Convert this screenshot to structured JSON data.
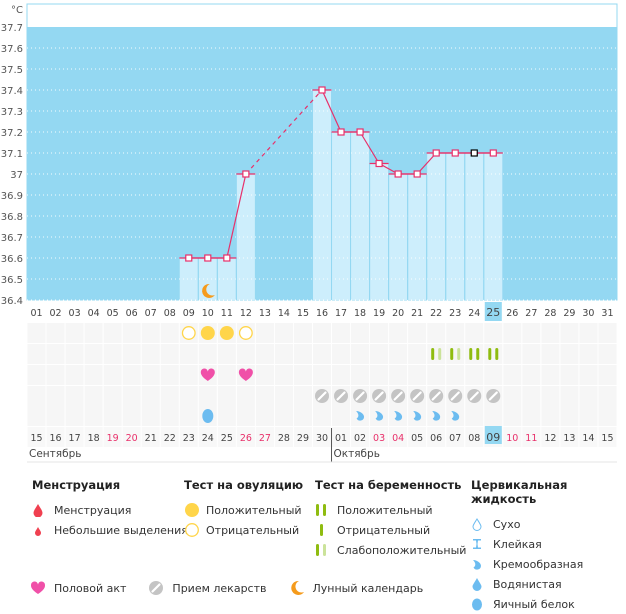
{
  "chart_data": {
    "type": "line",
    "title": "",
    "ylabel": "°C",
    "ylim": [
      36.4,
      37.7
    ],
    "yticks": [
      "37.7",
      "37.6",
      "37.5",
      "37.4",
      "37.3",
      "37.2",
      "37.1",
      "37",
      "36.9",
      "36.8",
      "36.7",
      "36.6",
      "36.5",
      "36.4"
    ],
    "cycle_days": [
      "01",
      "02",
      "03",
      "04",
      "05",
      "06",
      "07",
      "08",
      "09",
      "10",
      "11",
      "12",
      "13",
      "14",
      "15",
      "16",
      "17",
      "18",
      "19",
      "20",
      "21",
      "22",
      "23",
      "24",
      "25",
      "26",
      "27",
      "28",
      "29",
      "30",
      "31"
    ],
    "current_day": "25",
    "temperatures": [
      {
        "day": 9,
        "value": 36.6
      },
      {
        "day": 10,
        "value": 36.6
      },
      {
        "day": 11,
        "value": 36.6
      },
      {
        "day": 12,
        "value": 37.0
      },
      {
        "day": 16,
        "value": 37.4
      },
      {
        "day": 17,
        "value": 37.2
      },
      {
        "day": 18,
        "value": 37.2
      },
      {
        "day": 19,
        "value": 37.05
      },
      {
        "day": 20,
        "value": 37.0
      },
      {
        "day": 21,
        "value": 37.0
      },
      {
        "day": 22,
        "value": 37.1
      },
      {
        "day": 23,
        "value": 37.1
      },
      {
        "day": 24,
        "value": 37.1
      },
      {
        "day": 25,
        "value": 37.1
      }
    ],
    "dashed_gap": [
      12,
      16
    ],
    "lunar_calendar_days": [
      10
    ],
    "ovulation_test": [
      {
        "day": 9,
        "result": "negative"
      },
      {
        "day": 10,
        "result": "positive"
      },
      {
        "day": 11,
        "result": "positive"
      },
      {
        "day": 12,
        "result": "negative"
      }
    ],
    "pregnancy_test": [
      {
        "day": 22,
        "result": "weak"
      },
      {
        "day": 23,
        "result": "weak"
      },
      {
        "day": 24,
        "result": "positive"
      },
      {
        "day": 25,
        "result": "positive"
      }
    ],
    "intercourse_days": [
      10,
      12
    ],
    "medication_days": [
      16,
      17,
      18,
      19,
      20,
      21,
      22,
      23,
      24,
      25
    ],
    "cervical_fluid": [
      {
        "day": 10,
        "type": "egg_white"
      },
      {
        "day": 18,
        "type": "creamy"
      },
      {
        "day": 19,
        "type": "creamy"
      },
      {
        "day": 20,
        "type": "creamy"
      },
      {
        "day": 21,
        "type": "creamy"
      },
      {
        "day": 22,
        "type": "creamy"
      },
      {
        "day": 23,
        "type": "creamy"
      }
    ],
    "calendar_dates": [
      "15",
      "16",
      "17",
      "18",
      "19",
      "20",
      "21",
      "22",
      "23",
      "24",
      "25",
      "26",
      "27",
      "28",
      "29",
      "30",
      "01",
      "02",
      "03",
      "04",
      "05",
      "06",
      "07",
      "08",
      "09",
      "10",
      "11",
      "12",
      "13",
      "14",
      "15"
    ],
    "weekend_dates_index": [
      4,
      5,
      11,
      12,
      18,
      19,
      25,
      26
    ],
    "today_date_index": 24,
    "month_labels": [
      {
        "label": "Сентябрь",
        "start_index": 0
      },
      {
        "label": "Октябрь",
        "start_index": 16
      }
    ]
  },
  "colors": {
    "chart_bg": "#94d8f2",
    "bar": "#cdeefc",
    "line": "#e8306a",
    "ovulation": "#ffd54a",
    "pregnancy_dark": "#8fbc10",
    "pregnancy_light": "#cbe39a",
    "heart": "#f050a8",
    "medication": "#c4c4c4",
    "fluid": "#6cbcf0",
    "moon": "#f59b1c",
    "weekend": "#e8306a",
    "menstruation": "#f04050"
  },
  "legend": {
    "menstruation": {
      "title": "Менструация",
      "items": [
        "Менструация",
        "Небольшие выделения"
      ]
    },
    "ovulation": {
      "title": "Тест на овуляцию",
      "items": [
        "Положительный",
        "Отрицательный"
      ]
    },
    "pregnancy": {
      "title": "Тест на беременность",
      "items": [
        "Положительный",
        "Отрицательный",
        "Слабоположительный"
      ]
    },
    "cervical": {
      "title": "Цервикальная жидкость",
      "items": [
        "Сухо",
        "Клейкая",
        "Кремообразная",
        "Водянистая",
        "Яичный белок"
      ]
    },
    "bottom": [
      "Половой акт",
      "Прием лекарств",
      "Лунный календарь"
    ]
  }
}
